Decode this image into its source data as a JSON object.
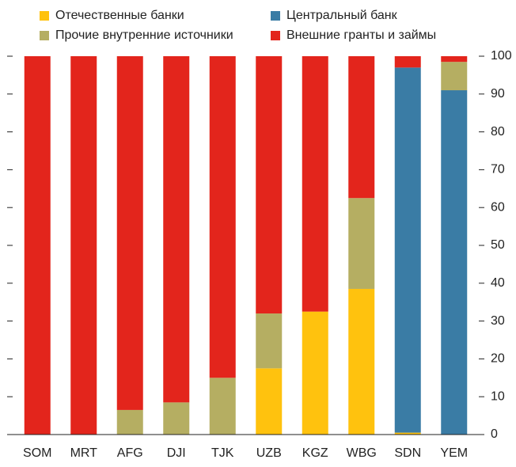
{
  "chart_data": {
    "type": "stacked_bar",
    "categories": [
      "SOM",
      "MRT",
      "AFG",
      "DJI",
      "TJK",
      "UZB",
      "KGZ",
      "WBG",
      "SDN",
      "YEM"
    ],
    "series": [
      {
        "name": "Отечественные банки",
        "color": "#ffc20e",
        "values": [
          0,
          0,
          0,
          0,
          0,
          17.5,
          32.5,
          38.5,
          0.5,
          0
        ]
      },
      {
        "name": "Центральный банк",
        "color": "#3a7ca5",
        "values": [
          0,
          0,
          0,
          0,
          0,
          0,
          0,
          0,
          96.5,
          91
        ]
      },
      {
        "name": "Прочие внутренние источники",
        "color": "#b5ae62",
        "values": [
          0,
          0,
          6.5,
          8.5,
          15,
          14.5,
          0,
          24,
          0,
          7.5
        ]
      },
      {
        "name": "Внешние гранты и займы",
        "color": "#e3251c",
        "values": [
          100,
          100,
          93.5,
          91.5,
          85,
          68,
          67.5,
          37.5,
          3,
          1.5
        ]
      }
    ],
    "ylim": [
      0,
      100
    ],
    "yticks": [
      0,
      10,
      20,
      30,
      40,
      50,
      60,
      70,
      80,
      90,
      100
    ],
    "grid": false
  }
}
